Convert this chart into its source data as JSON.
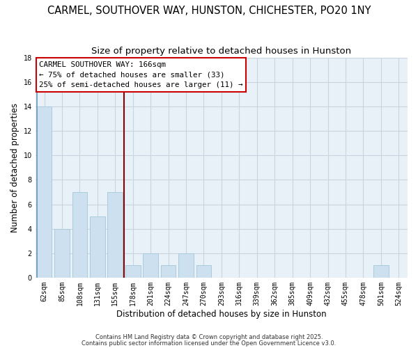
{
  "title": "CARMEL, SOUTHOVER WAY, HUNSTON, CHICHESTER, PO20 1NY",
  "subtitle": "Size of property relative to detached houses in Hunston",
  "xlabel": "Distribution of detached houses by size in Hunston",
  "ylabel": "Number of detached properties",
  "categories": [
    "62sqm",
    "85sqm",
    "108sqm",
    "131sqm",
    "155sqm",
    "178sqm",
    "201sqm",
    "224sqm",
    "247sqm",
    "270sqm",
    "293sqm",
    "316sqm",
    "339sqm",
    "362sqm",
    "385sqm",
    "409sqm",
    "432sqm",
    "455sqm",
    "478sqm",
    "501sqm",
    "524sqm"
  ],
  "values": [
    14,
    4,
    7,
    5,
    7,
    1,
    2,
    1,
    2,
    1,
    0,
    0,
    0,
    0,
    0,
    0,
    0,
    0,
    0,
    1,
    0
  ],
  "bar_color": "#cce0f0",
  "bar_edge_color": "#aaccdd",
  "ylim": [
    0,
    18
  ],
  "yticks": [
    0,
    2,
    4,
    6,
    8,
    10,
    12,
    14,
    16,
    18
  ],
  "vline_x": 4.5,
  "vline_color": "#8b0000",
  "blue_vline_x": 0,
  "blue_vline_color": "#6699bb",
  "annotation_title": "CARMEL SOUTHOVER WAY: 166sqm",
  "annotation_line1": "← 75% of detached houses are smaller (33)",
  "annotation_line2": "25% of semi-detached houses are larger (11) →",
  "annotation_box_color": "#ffffff",
  "annotation_box_edge": "#cc0000",
  "footer1": "Contains HM Land Registry data © Crown copyright and database right 2025.",
  "footer2": "Contains public sector information licensed under the Open Government Licence v3.0.",
  "bg_color": "#ffffff",
  "plot_bg_color": "#e8f0f8",
  "grid_color": "#c8d4e0",
  "title_fontsize": 10.5,
  "subtitle_fontsize": 9.5,
  "tick_label_fontsize": 7,
  "axis_label_fontsize": 8.5,
  "annotation_fontsize": 7.8,
  "footer_fontsize": 6.0
}
